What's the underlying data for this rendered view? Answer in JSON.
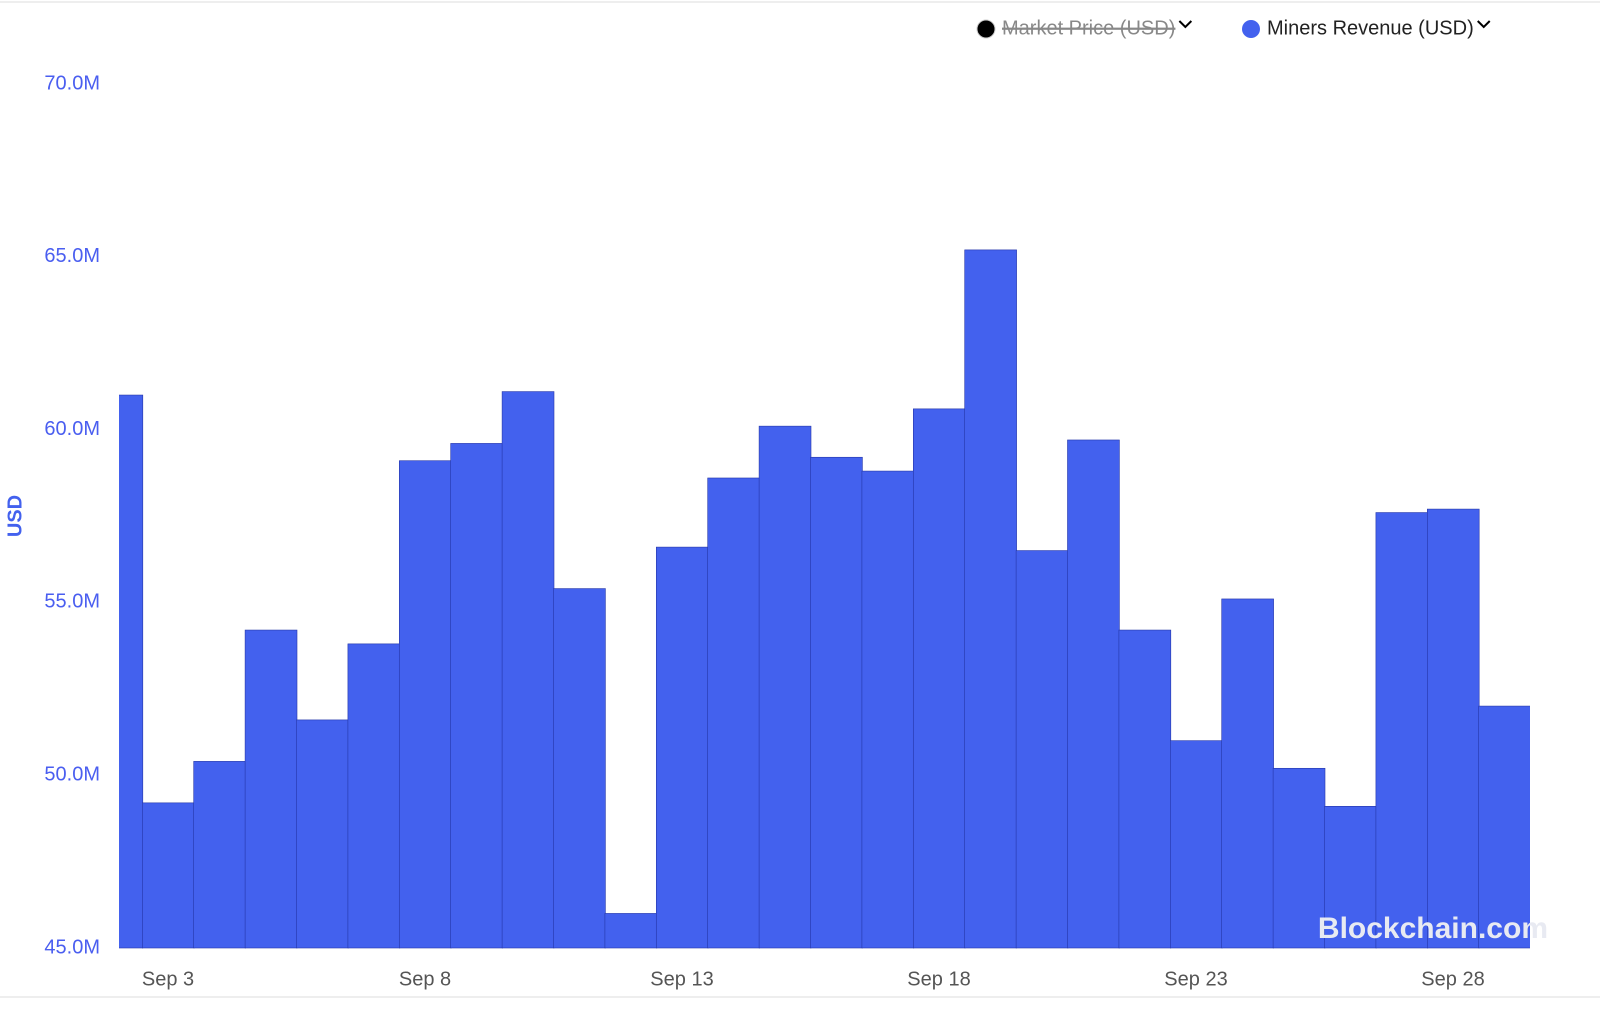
{
  "chart_data": {
    "type": "bar",
    "y_label": "USD",
    "watermark": "Blockchain.com",
    "categories": [
      null,
      "Sep 3",
      null,
      null,
      null,
      null,
      "Sep 8",
      null,
      null,
      null,
      null,
      "Sep 13",
      null,
      null,
      null,
      null,
      "Sep 18",
      null,
      null,
      null,
      null,
      "Sep 23",
      null,
      null,
      null,
      null,
      "Sep 28",
      null
    ],
    "series": [
      {
        "name": "Miners Revenue (USD)",
        "color": "#4361ee",
        "values": [
          61000000,
          49200000,
          50400000,
          54200000,
          51600000,
          53800000,
          59100000,
          59600000,
          61100000,
          55400000,
          46000000,
          56600000,
          58600000,
          60100000,
          59200000,
          58800000,
          60600000,
          65200000,
          56500000,
          59700000,
          54200000,
          51000000,
          55100000,
          50200000,
          49100000,
          57600000,
          57700000,
          52000000
        ]
      }
    ],
    "hidden_series": [
      {
        "name": "Market Price (USD)",
        "color": "#000000"
      }
    ],
    "ylim": [
      45000000,
      70000000
    ],
    "yticks": [
      {
        "value": 45000000,
        "label": "45.0M"
      },
      {
        "value": 50000000,
        "label": "50.0M"
      },
      {
        "value": 55000000,
        "label": "55.0M"
      },
      {
        "value": 60000000,
        "label": "60.0M"
      },
      {
        "value": 65000000,
        "label": "65.0M"
      },
      {
        "value": 70000000,
        "label": "70.0M"
      }
    ],
    "grid": false
  }
}
